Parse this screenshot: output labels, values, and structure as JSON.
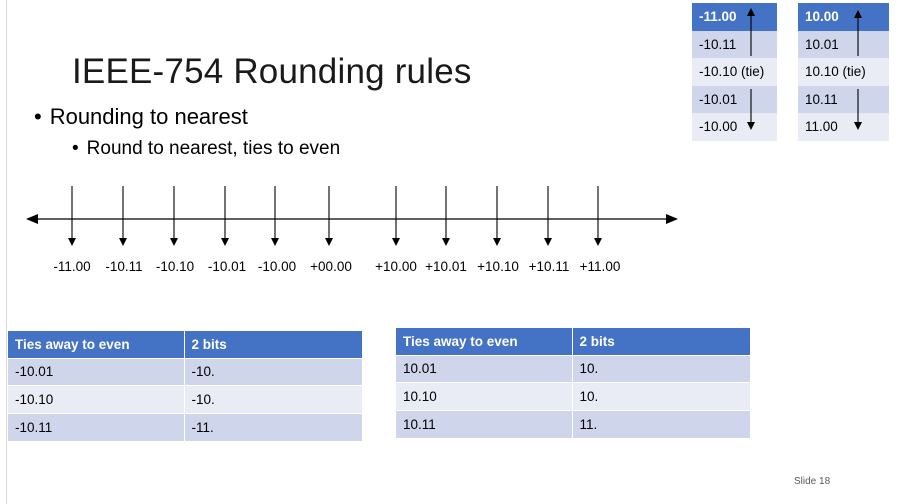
{
  "slide": {
    "title": "IEEE-754 Rounding rules",
    "bullet_1": "Rounding to nearest",
    "bullet_2": "Round to nearest, ties to even",
    "bullet_char": "•",
    "slide_number": "Slide  18"
  },
  "number_line": {
    "labels": [
      "-11.00",
      "-10.11",
      "-10.10",
      "-10.01",
      "-10.00",
      "+00.00",
      "+10.00",
      "+10.01",
      "+10.10",
      "+10.11",
      "+11.00"
    ]
  },
  "negative_mini_table": {
    "rows": [
      "-11.00",
      "-10.11",
      "-10.10 (tie)",
      "-10.01",
      "-10.00"
    ]
  },
  "positive_mini_table": {
    "rows": [
      "10.00",
      "10.01",
      "10.10 (tie)",
      "10.11",
      "11.00"
    ]
  },
  "negative_table": {
    "headers": [
      "Ties away to even",
      "2 bits"
    ],
    "rows": [
      [
        "-10.01",
        "-10."
      ],
      [
        "-10.10",
        "-10."
      ],
      [
        "-10.11",
        "-11."
      ]
    ]
  },
  "positive_table": {
    "headers": [
      "Ties away to even",
      "2 bits"
    ],
    "rows": [
      [
        "10.01",
        "10."
      ],
      [
        "10.10",
        "10."
      ],
      [
        "10.11",
        "11."
      ]
    ]
  },
  "colors": {
    "header_blue": "#4472c4",
    "row_dark": "#cfd5ea",
    "row_light": "#e9ebf5"
  }
}
